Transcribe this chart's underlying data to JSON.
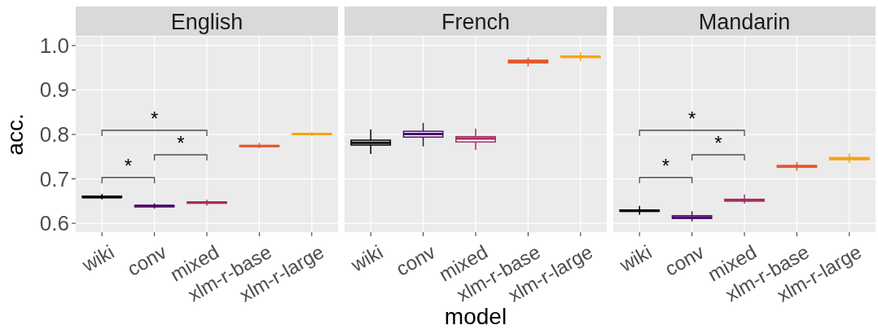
{
  "chart_data": [
    {
      "type": "box",
      "title": "English",
      "ylabel": "acc.",
      "categories": [
        "wiki",
        "conv",
        "mixed",
        "xlm-r-base",
        "xlm-r-large"
      ],
      "colors": [
        "#000000",
        "#4b0c6b",
        "#a52c60",
        "#e4572e",
        "#f9a20f"
      ],
      "ylim": [
        0.58,
        1.02
      ],
      "yticks": [
        {
          "value": 0.6,
          "label": "0.6"
        },
        {
          "value": 0.7,
          "label": "0.7"
        },
        {
          "value": 0.8,
          "label": "0.8"
        },
        {
          "value": 0.9,
          "label": "0.9"
        },
        {
          "value": 1.0,
          "label": "1.0"
        }
      ],
      "grid": true,
      "boxes": [
        {
          "low": 0.654,
          "q1": 0.658,
          "median": 0.659,
          "q3": 0.661,
          "high": 0.666
        },
        {
          "low": 0.633,
          "q1": 0.637,
          "median": 0.639,
          "q3": 0.64,
          "high": 0.645
        },
        {
          "low": 0.64,
          "q1": 0.645,
          "median": 0.647,
          "q3": 0.648,
          "high": 0.653
        },
        {
          "low": 0.769,
          "q1": 0.773,
          "median": 0.774,
          "q3": 0.775,
          "high": 0.781
        },
        {
          "low": 0.797,
          "q1": 0.8,
          "median": 0.801,
          "q3": 0.802,
          "high": 0.805
        }
      ],
      "annotations": [
        "*",
        "*",
        "*"
      ]
    },
    {
      "type": "box",
      "title": "French",
      "xlabel": "model",
      "categories": [
        "wiki",
        "conv",
        "mixed",
        "xlm-r-base",
        "xlm-r-large"
      ],
      "colors": [
        "#000000",
        "#4b0c6b",
        "#a52c60",
        "#e4572e",
        "#f9a20f"
      ],
      "ylim": [
        0.58,
        1.02
      ],
      "yticks": [
        0.6,
        0.7,
        0.8,
        0.9,
        1
      ],
      "grid": true,
      "tick_labels": "x",
      "boxes": [
        {
          "low": 0.756,
          "q1": 0.776,
          "median": 0.781,
          "q3": 0.787,
          "high": 0.811
        },
        {
          "low": 0.773,
          "q1": 0.794,
          "median": 0.801,
          "q3": 0.807,
          "high": 0.826
        },
        {
          "low": 0.765,
          "q1": 0.783,
          "median": 0.791,
          "q3": 0.795,
          "high": 0.813
        },
        {
          "low": 0.953,
          "q1": 0.961,
          "median": 0.964,
          "q3": 0.967,
          "high": 0.973
        },
        {
          "low": 0.965,
          "q1": 0.973,
          "median": 0.975,
          "q3": 0.976,
          "high": 0.985
        }
      ]
    },
    {
      "type": "box",
      "title": "Mandarin",
      "categories": [
        "wiki",
        "conv",
        "mixed",
        "xlm-r-base",
        "xlm-r-large"
      ],
      "colors": [
        "#000000",
        "#4b0c6b",
        "#a52c60",
        "#e4572e",
        "#f9a20f"
      ],
      "ylim": [
        0.58,
        1.02
      ],
      "yticks": [
        0.6,
        0.7,
        0.8,
        0.9,
        1
      ],
      "grid": true,
      "tick_labels": "x",
      "boxes": [
        {
          "low": 0.619,
          "q1": 0.627,
          "median": 0.628,
          "q3": 0.63,
          "high": 0.639
        },
        {
          "low": 0.604,
          "q1": 0.611,
          "median": 0.613,
          "q3": 0.617,
          "high": 0.627
        },
        {
          "low": 0.644,
          "q1": 0.65,
          "median": 0.652,
          "q3": 0.654,
          "high": 0.665
        },
        {
          "low": 0.718,
          "q1": 0.726,
          "median": 0.728,
          "q3": 0.73,
          "high": 0.738
        },
        {
          "low": 0.736,
          "q1": 0.743,
          "median": 0.746,
          "q3": 0.748,
          "high": 0.757
        }
      ],
      "annotations": [
        "*",
        "*",
        "*"
      ]
    }
  ]
}
